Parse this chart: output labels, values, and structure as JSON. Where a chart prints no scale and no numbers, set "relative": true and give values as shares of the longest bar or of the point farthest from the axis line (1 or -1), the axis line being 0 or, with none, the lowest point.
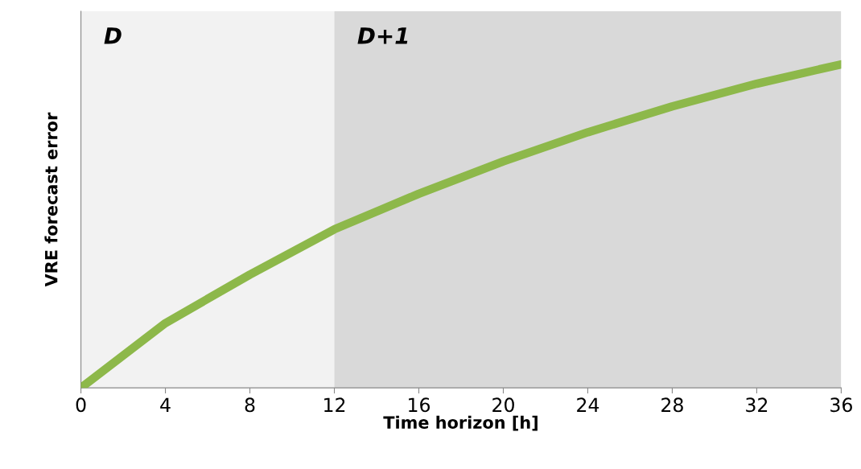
{
  "chart_data": {
    "type": "line",
    "relative": true,
    "xlabel": "Time horizon [h]",
    "ylabel": "VRE forecast error",
    "x": [
      0,
      4,
      8,
      12,
      16,
      20,
      24,
      28,
      32,
      36
    ],
    "series": [
      {
        "color": "#8db84a",
        "values": [
          0,
          0.2,
          0.35,
          0.49,
          0.6,
          0.7,
          0.79,
          0.87,
          0.94,
          1.0
        ]
      }
    ],
    "xlim": [
      0,
      36
    ],
    "xticks": [
      0,
      4,
      8,
      12,
      16,
      20,
      24,
      28,
      32,
      36
    ],
    "bands": [
      {
        "axis": "x",
        "from": 0,
        "to": 12,
        "label": "D",
        "color": "#f2f2f2"
      },
      {
        "axis": "x",
        "from": 12,
        "to": 36,
        "label": "D+1",
        "color": "#d9d9d9"
      }
    ],
    "grid": false,
    "legend": false,
    "line_style": "solid",
    "marker": "none"
  }
}
